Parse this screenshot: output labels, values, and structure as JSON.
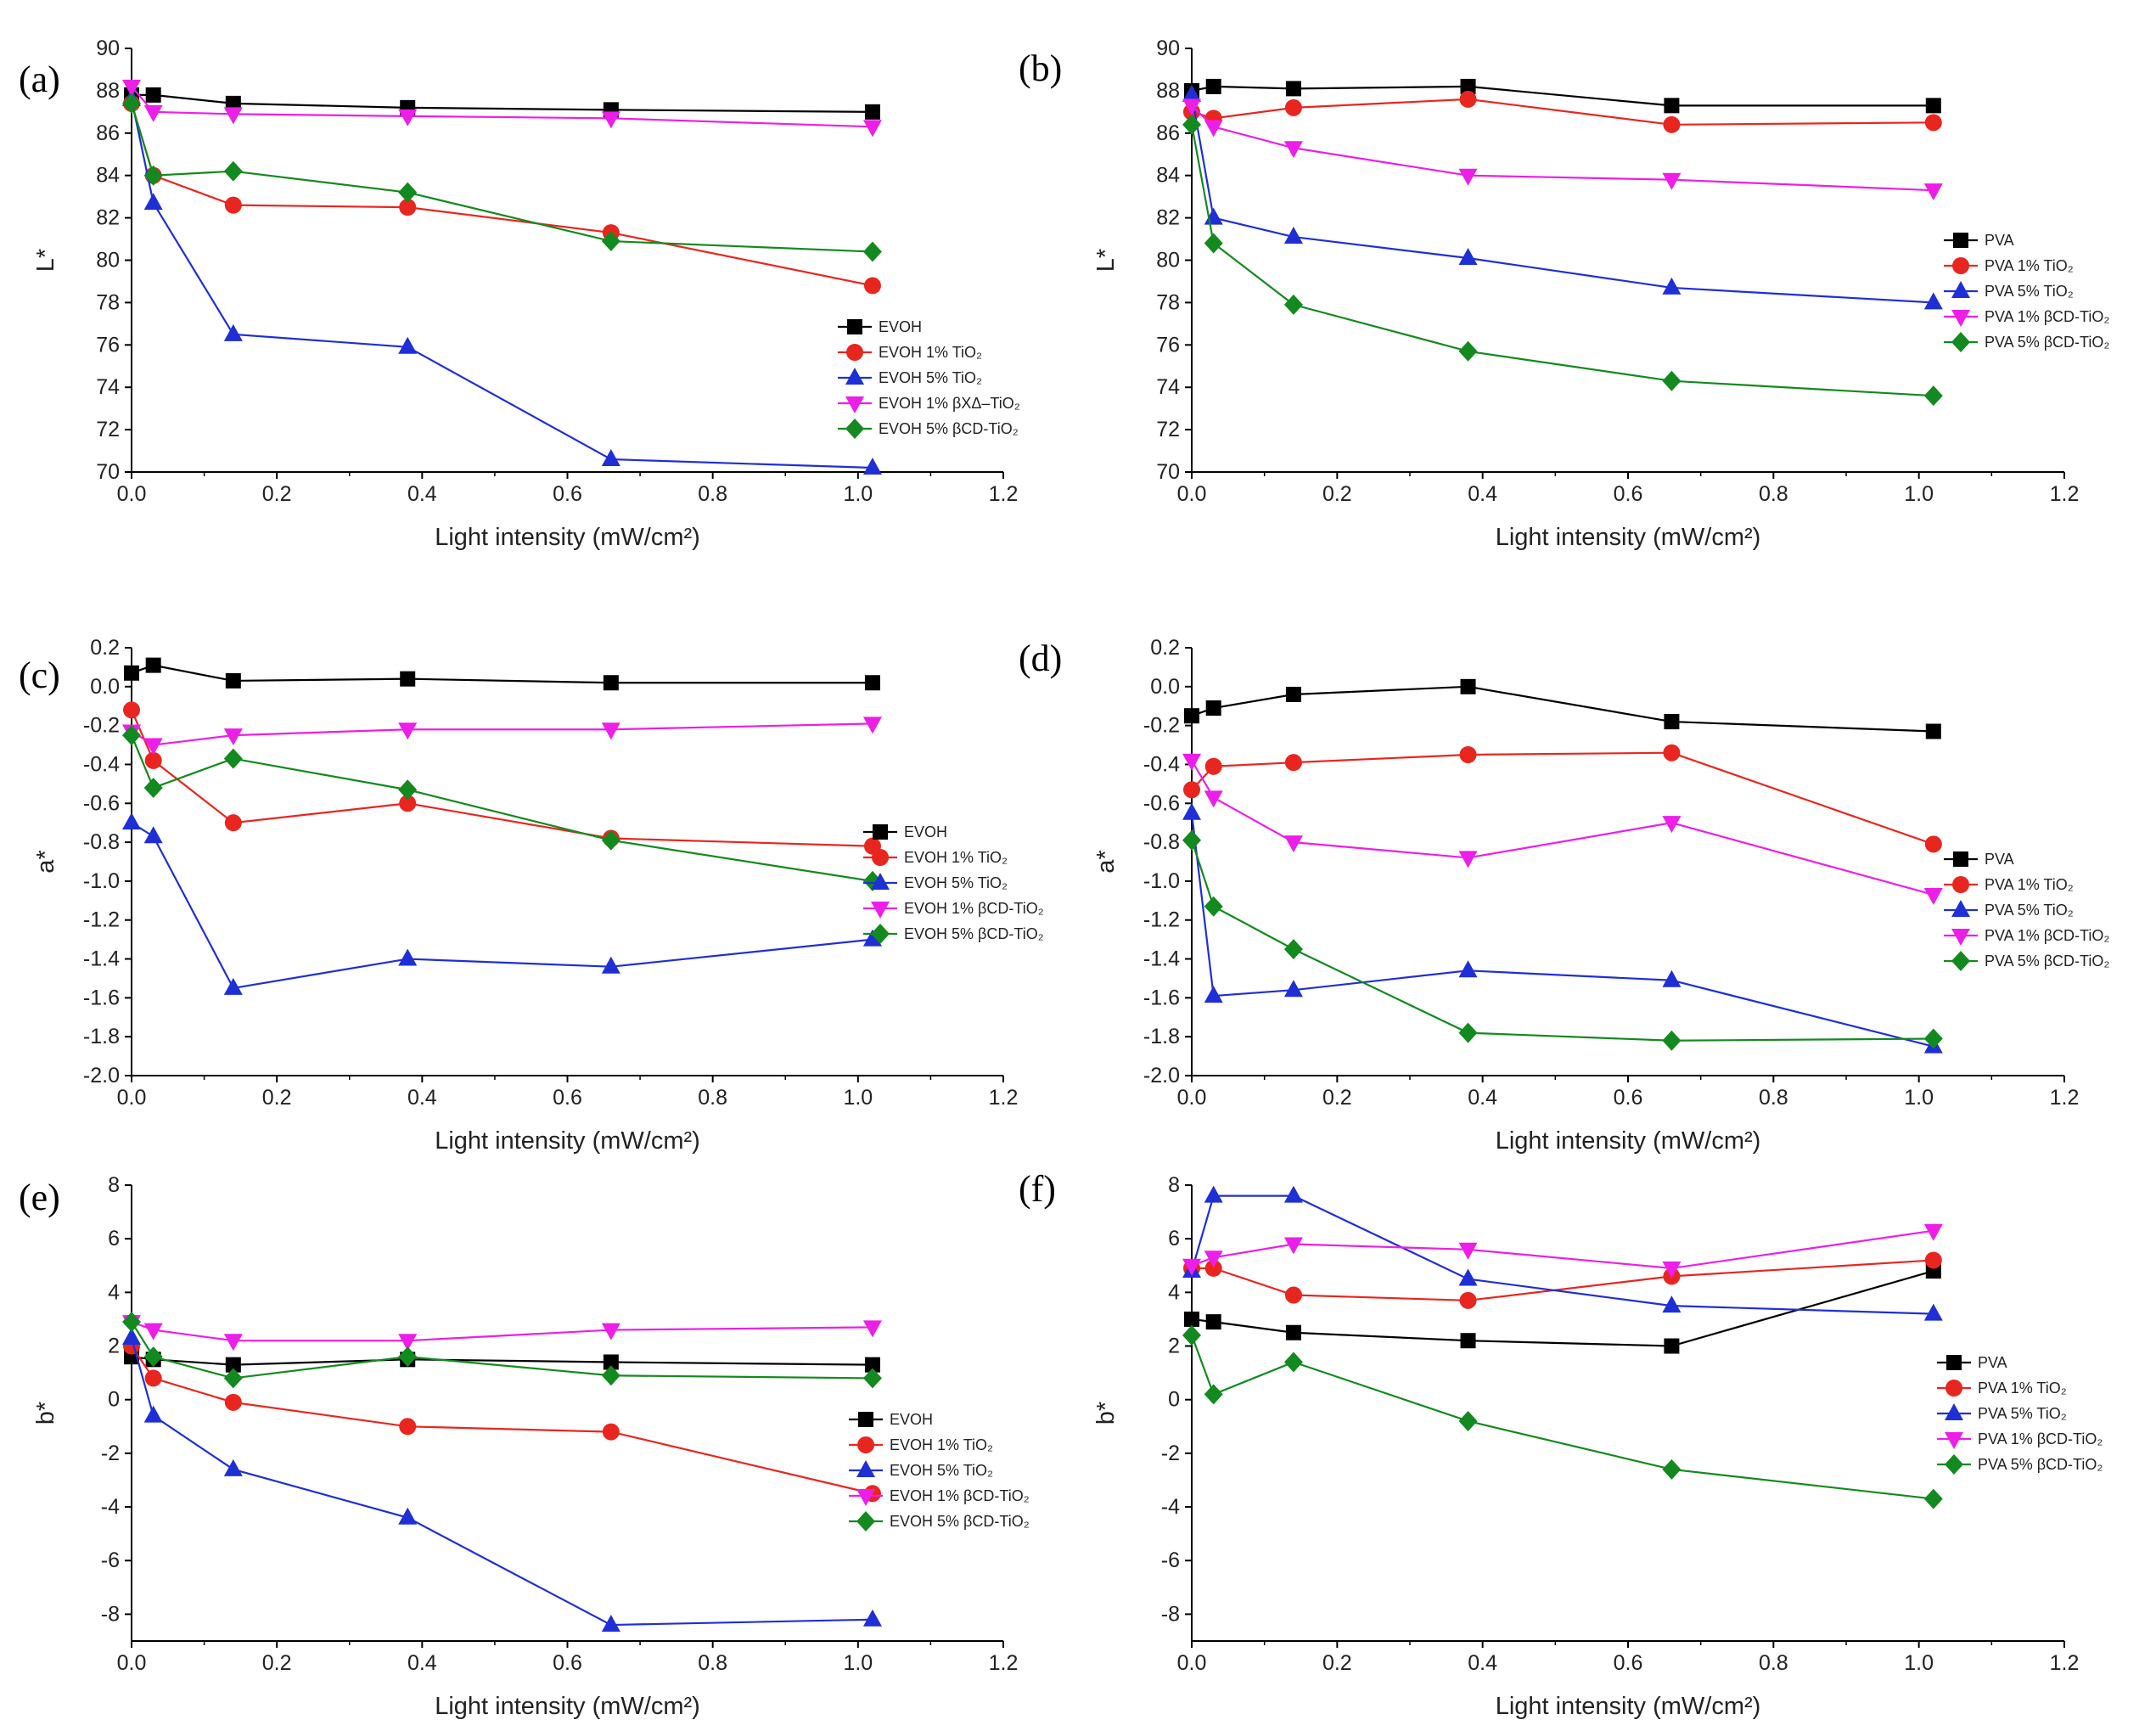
{
  "chart_data": [
    {
      "panel": "(a)",
      "type": "line",
      "ylabel": "L*",
      "xlabel": "Light intensity (mW/cm²)",
      "xlim": [
        0,
        1.2
      ],
      "ylim": [
        70,
        90
      ],
      "xticks": [
        "0.0",
        "0.2",
        "0.4",
        "0.6",
        "0.8",
        "1.0",
        "1.2"
      ],
      "yticks": [
        "70",
        "72",
        "74",
        "76",
        "78",
        "80",
        "82",
        "84",
        "86",
        "88",
        "90"
      ],
      "x": [
        0,
        0.03,
        0.14,
        0.38,
        0.66,
        1.02
      ],
      "legend_position": "lower-right",
      "series": [
        {
          "name": "EVOH",
          "color": "#000000",
          "marker": "square",
          "values": [
            87.8,
            87.8,
            87.4,
            87.2,
            87.1,
            87.0
          ]
        },
        {
          "name": "EVOH 1% TiO₂",
          "color": "#e8261f",
          "marker": "circle",
          "values": [
            87.4,
            84.0,
            82.6,
            82.5,
            81.3,
            78.8
          ]
        },
        {
          "name": "EVOH 5% TiO₂",
          "color": "#1f2fd6",
          "marker": "triangle-up",
          "values": [
            87.6,
            82.7,
            76.5,
            75.9,
            70.6,
            70.2
          ]
        },
        {
          "name": "EVOH 1% βΧΔ–TiO₂",
          "color": "#ec1ee8",
          "marker": "triangle-down",
          "values": [
            88.2,
            87.0,
            86.9,
            86.8,
            86.7,
            86.3
          ]
        },
        {
          "name": "EVOH 5% βCD-TiO₂",
          "color": "#138a1f",
          "marker": "diamond",
          "values": [
            87.4,
            84.0,
            84.2,
            83.2,
            80.9,
            80.4
          ]
        }
      ]
    },
    {
      "panel": "(b)",
      "type": "line",
      "ylabel": "L*",
      "xlabel": "Light intensity (mW/cm²)",
      "xlim": [
        0,
        1.2
      ],
      "ylim": [
        70,
        90
      ],
      "xticks": [
        "0.0",
        "0.2",
        "0.4",
        "0.6",
        "0.8",
        "1.0",
        "1.2"
      ],
      "yticks": [
        "70",
        "72",
        "74",
        "76",
        "78",
        "80",
        "82",
        "84",
        "86",
        "88",
        "90"
      ],
      "x": [
        0,
        0.03,
        0.14,
        0.38,
        0.66,
        1.02
      ],
      "legend_position": "right",
      "series": [
        {
          "name": "PVA",
          "color": "#000000",
          "marker": "square",
          "values": [
            88.0,
            88.2,
            88.1,
            88.2,
            87.3,
            87.3
          ]
        },
        {
          "name": "PVA 1% TiO₂",
          "color": "#e8261f",
          "marker": "circle",
          "values": [
            87.0,
            86.7,
            87.2,
            87.6,
            86.4,
            86.5
          ]
        },
        {
          "name": "PVA 5% TiO₂",
          "color": "#1f2fd6",
          "marker": "triangle-up",
          "values": [
            87.8,
            82.0,
            81.1,
            80.1,
            78.7,
            78.0
          ]
        },
        {
          "name": "PVA 1% βCD-TiO₂",
          "color": "#ec1ee8",
          "marker": "triangle-down",
          "values": [
            87.3,
            86.3,
            85.3,
            84.0,
            83.8,
            83.3
          ]
        },
        {
          "name": "PVA 5% βCD-TiO₂",
          "color": "#138a1f",
          "marker": "diamond",
          "values": [
            86.4,
            80.8,
            77.9,
            75.7,
            74.3,
            73.6
          ]
        }
      ]
    },
    {
      "panel": "(c)",
      "type": "line",
      "ylabel": "a*",
      "xlabel": "Light intensity (mW/cm²)",
      "xlim": [
        0,
        1.2
      ],
      "ylim": [
        -2.0,
        0.2
      ],
      "xticks": [
        "0.0",
        "0.2",
        "0.4",
        "0.6",
        "0.8",
        "1.0",
        "1.2"
      ],
      "yticks": [
        "-2.0",
        "-1.8",
        "-1.6",
        "-1.4",
        "-1.2",
        "-1.0",
        "-0.8",
        "-0.6",
        "-0.4",
        "-0.2",
        "0.0",
        "0.2"
      ],
      "x": [
        0,
        0.03,
        0.14,
        0.38,
        0.66,
        1.02
      ],
      "legend_position": "right",
      "series": [
        {
          "name": "EVOH",
          "color": "#000000",
          "marker": "square",
          "values": [
            0.07,
            0.11,
            0.03,
            0.04,
            0.02,
            0.02
          ]
        },
        {
          "name": "EVOH 1% TiO₂",
          "color": "#e8261f",
          "marker": "circle",
          "values": [
            -0.12,
            -0.38,
            -0.7,
            -0.6,
            -0.78,
            -0.82
          ]
        },
        {
          "name": "EVOH 5% TiO₂",
          "color": "#1f2fd6",
          "marker": "triangle-up",
          "values": [
            -0.7,
            -0.77,
            -1.55,
            -1.4,
            -1.44,
            -1.3
          ]
        },
        {
          "name": "EVOH 1% βCD-TiO₂",
          "color": "#ec1ee8",
          "marker": "triangle-down",
          "values": [
            -0.23,
            -0.3,
            -0.25,
            -0.22,
            -0.22,
            -0.19
          ]
        },
        {
          "name": "EVOH 5% βCD-TiO₂",
          "color": "#138a1f",
          "marker": "diamond",
          "values": [
            -0.25,
            -0.52,
            -0.37,
            -0.53,
            -0.79,
            -1.0
          ]
        }
      ]
    },
    {
      "panel": "(d)",
      "type": "line",
      "ylabel": "a*",
      "xlabel": "Light intensity (mW/cm²)",
      "xlim": [
        0,
        1.2
      ],
      "ylim": [
        -2.0,
        0.2
      ],
      "xticks": [
        "0.0",
        "0.2",
        "0.4",
        "0.6",
        "0.8",
        "1.0",
        "1.2"
      ],
      "yticks": [
        "-2.0",
        "-1.8",
        "-1.6",
        "-1.4",
        "-1.2",
        "-1.0",
        "-0.8",
        "-0.6",
        "-0.4",
        "-0.2",
        "0.0",
        "0.2"
      ],
      "x": [
        0,
        0.03,
        0.14,
        0.38,
        0.66,
        1.02
      ],
      "legend_position": "right",
      "series": [
        {
          "name": "PVA",
          "color": "#000000",
          "marker": "square",
          "values": [
            -0.15,
            -0.11,
            -0.04,
            0.0,
            -0.18,
            -0.23
          ]
        },
        {
          "name": "PVA 1% TiO₂",
          "color": "#e8261f",
          "marker": "circle",
          "values": [
            -0.53,
            -0.41,
            -0.39,
            -0.35,
            -0.34,
            -0.81
          ]
        },
        {
          "name": "PVA 5% TiO₂",
          "color": "#1f2fd6",
          "marker": "triangle-up",
          "values": [
            -0.65,
            -1.59,
            -1.56,
            -1.46,
            -1.51,
            -1.85
          ]
        },
        {
          "name": "PVA 1% βCD-TiO₂",
          "color": "#ec1ee8",
          "marker": "triangle-down",
          "values": [
            -0.38,
            -0.57,
            -0.8,
            -0.88,
            -0.7,
            -1.07
          ]
        },
        {
          "name": "PVA 5% βCD-TiO₂",
          "color": "#138a1f",
          "marker": "diamond",
          "values": [
            -0.79,
            -1.13,
            -1.35,
            -1.78,
            -1.82,
            -1.81
          ]
        }
      ]
    },
    {
      "panel": "(e)",
      "type": "line",
      "ylabel": "b*",
      "xlabel": "Light intensity (mW/cm²)",
      "xlim": [
        0,
        1.2
      ],
      "ylim": [
        -9.0,
        8
      ],
      "xticks": [
        "0.0",
        "0.2",
        "0.4",
        "0.6",
        "0.8",
        "1.0",
        "1.2"
      ],
      "yticks": [
        "-8",
        "-6",
        "-4",
        "-2",
        "0",
        "2",
        "4",
        "6",
        "8"
      ],
      "x": [
        0,
        0.03,
        0.14,
        0.38,
        0.66,
        1.02
      ],
      "legend_position": "right",
      "series": [
        {
          "name": "EVOH",
          "color": "#000000",
          "marker": "square",
          "values": [
            1.6,
            1.5,
            1.3,
            1.5,
            1.4,
            1.3
          ]
        },
        {
          "name": "EVOH 1% TiO₂",
          "color": "#e8261f",
          "marker": "circle",
          "values": [
            2.0,
            0.8,
            -0.1,
            -1.0,
            -1.2,
            -3.5
          ]
        },
        {
          "name": "EVOH 5% TiO₂",
          "color": "#1f2fd6",
          "marker": "triangle-up",
          "values": [
            2.3,
            -0.6,
            -2.6,
            -4.4,
            -8.4,
            -8.2
          ]
        },
        {
          "name": "EVOH 1% βCD-TiO₂",
          "color": "#ec1ee8",
          "marker": "triangle-down",
          "values": [
            2.9,
            2.6,
            2.2,
            2.2,
            2.6,
            2.7
          ]
        },
        {
          "name": "EVOH 5% βCD-TiO₂",
          "color": "#138a1f",
          "marker": "diamond",
          "values": [
            2.9,
            1.6,
            0.8,
            1.6,
            0.9,
            0.8
          ]
        }
      ]
    },
    {
      "panel": "(f)",
      "type": "line",
      "ylabel": "b*",
      "xlabel": "Light intensity (mW/cm²)",
      "xlim": [
        0,
        1.2
      ],
      "ylim": [
        -9.0,
        8
      ],
      "xticks": [
        "0.0",
        "0.2",
        "0.4",
        "0.6",
        "0.8",
        "1.0",
        "1.2"
      ],
      "yticks": [
        "-8",
        "-6",
        "-4",
        "-2",
        "0",
        "2",
        "4",
        "6",
        "8"
      ],
      "x": [
        0,
        0.03,
        0.14,
        0.38,
        0.66,
        1.02
      ],
      "legend_position": "right",
      "series": [
        {
          "name": "PVA",
          "color": "#000000",
          "marker": "square",
          "values": [
            3.0,
            2.9,
            2.5,
            2.2,
            2.0,
            4.8
          ]
        },
        {
          "name": "PVA 1% TiO₂",
          "color": "#e8261f",
          "marker": "circle",
          "values": [
            4.9,
            4.9,
            3.9,
            3.7,
            4.6,
            5.2
          ]
        },
        {
          "name": "PVA 5% TiO₂",
          "color": "#1f2fd6",
          "marker": "triangle-up",
          "values": [
            4.8,
            7.6,
            7.6,
            4.5,
            3.5,
            3.2
          ]
        },
        {
          "name": "PVA 1% βCD-TiO₂",
          "color": "#ec1ee8",
          "marker": "triangle-down",
          "values": [
            5.0,
            5.3,
            5.8,
            5.6,
            4.9,
            6.3
          ]
        },
        {
          "name": "PVA 5% βCD-TiO₂",
          "color": "#138a1f",
          "marker": "diamond",
          "values": [
            2.4,
            0.2,
            1.4,
            -0.8,
            -2.6,
            -3.7
          ]
        }
      ]
    }
  ]
}
